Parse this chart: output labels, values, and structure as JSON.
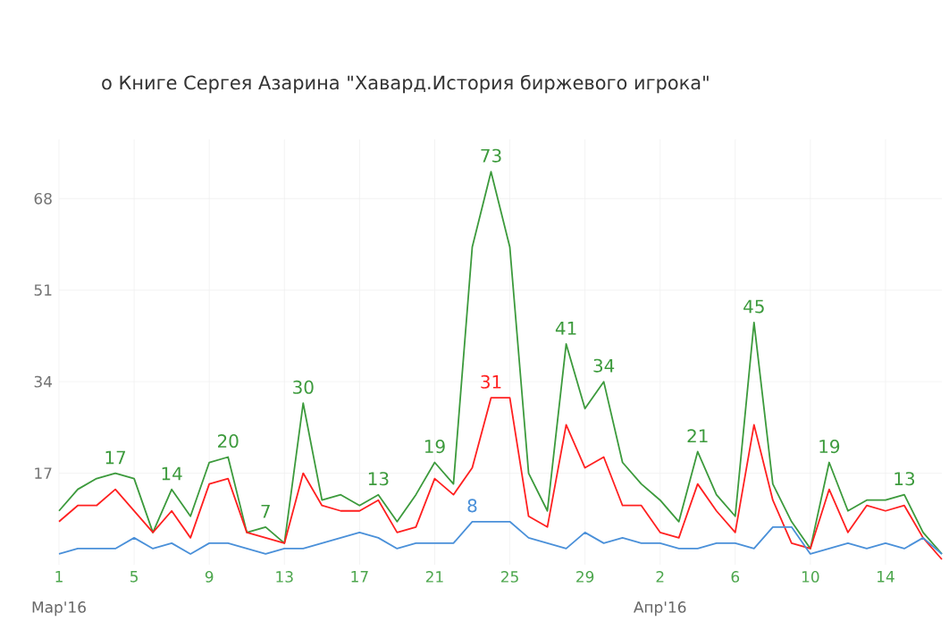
{
  "chart_data": {
    "type": "line",
    "subtitle": "о Книге Сергея Азарина \"Хавард.История биржевого игрока\"",
    "x": [
      "2016-03-01",
      "2016-03-02",
      "2016-03-03",
      "2016-03-04",
      "2016-03-05",
      "2016-03-06",
      "2016-03-07",
      "2016-03-08",
      "2016-03-09",
      "2016-03-10",
      "2016-03-11",
      "2016-03-12",
      "2016-03-13",
      "2016-03-14",
      "2016-03-15",
      "2016-03-16",
      "2016-03-17",
      "2016-03-18",
      "2016-03-19",
      "2016-03-20",
      "2016-03-21",
      "2016-03-22",
      "2016-03-23",
      "2016-03-24",
      "2016-03-25",
      "2016-03-26",
      "2016-03-27",
      "2016-03-28",
      "2016-03-29",
      "2016-03-30",
      "2016-03-31",
      "2016-04-01",
      "2016-04-02",
      "2016-04-03",
      "2016-04-04",
      "2016-04-05",
      "2016-04-06",
      "2016-04-07",
      "2016-04-08",
      "2016-04-09",
      "2016-04-10",
      "2016-04-11",
      "2016-04-12",
      "2016-04-13",
      "2016-04-14",
      "2016-04-15",
      "2016-04-16",
      "2016-04-17"
    ],
    "series": [
      {
        "color": "#3c9a3c",
        "values": [
          10,
          14,
          16,
          17,
          16,
          6,
          14,
          9,
          19,
          20,
          6,
          7,
          4,
          30,
          12,
          13,
          11,
          13,
          8,
          13,
          19,
          15,
          59,
          73,
          59,
          17,
          10,
          41,
          29,
          34,
          19,
          15,
          12,
          8,
          21,
          13,
          9,
          45,
          15,
          8,
          3,
          19,
          10,
          12,
          12,
          13,
          6,
          2
        ],
        "value_labels": [
          null,
          null,
          null,
          "17",
          null,
          null,
          "14",
          null,
          null,
          "20",
          null,
          "7",
          null,
          "30",
          null,
          null,
          null,
          "13",
          null,
          null,
          "19",
          null,
          null,
          "73",
          null,
          null,
          null,
          "41",
          null,
          "34",
          null,
          null,
          null,
          null,
          "21",
          null,
          null,
          "45",
          null,
          null,
          null,
          "19",
          null,
          null,
          null,
          "13",
          null,
          null
        ]
      },
      {
        "color": "#ff2020",
        "values": [
          8,
          11,
          11,
          14,
          10,
          6,
          10,
          5,
          15,
          16,
          6,
          5,
          4,
          17,
          11,
          10,
          10,
          12,
          6,
          7,
          16,
          13,
          18,
          31,
          31,
          9,
          7,
          26,
          18,
          20,
          11,
          11,
          6,
          5,
          15,
          10,
          6,
          26,
          12,
          4,
          3,
          14,
          6,
          11,
          10,
          11,
          5,
          1
        ],
        "value_labels": [
          null,
          null,
          null,
          null,
          null,
          null,
          null,
          null,
          null,
          null,
          null,
          null,
          null,
          null,
          null,
          null,
          null,
          null,
          null,
          null,
          null,
          null,
          null,
          "31",
          null,
          null,
          null,
          null,
          null,
          null,
          null,
          null,
          null,
          null,
          null,
          null,
          null,
          null,
          null,
          null,
          null,
          null,
          null,
          null,
          null,
          null,
          null,
          null
        ]
      },
      {
        "color": "#4a90d9",
        "values": [
          2,
          3,
          3,
          3,
          5,
          3,
          4,
          2,
          4,
          4,
          3,
          2,
          3,
          3,
          4,
          5,
          6,
          5,
          3,
          4,
          4,
          4,
          8,
          8,
          8,
          5,
          4,
          3,
          6,
          4,
          5,
          4,
          4,
          3,
          3,
          4,
          4,
          3,
          7,
          7,
          2,
          3,
          4,
          3,
          4,
          3,
          5,
          2
        ],
        "value_labels": [
          null,
          null,
          null,
          null,
          null,
          null,
          null,
          null,
          null,
          null,
          null,
          null,
          null,
          null,
          null,
          null,
          null,
          null,
          null,
          null,
          null,
          null,
          "8",
          null,
          null,
          null,
          null,
          null,
          null,
          null,
          null,
          null,
          null,
          null,
          null,
          null,
          null,
          null,
          null,
          null,
          null,
          null,
          null,
          null,
          null,
          null,
          null,
          null
        ]
      }
    ],
    "xlim": [
      "2016-03-01",
      "2016-04-17"
    ],
    "xticks": [
      {
        "value": "2016-03-01",
        "label": "1"
      },
      {
        "value": "2016-03-05",
        "label": "5"
      },
      {
        "value": "2016-03-09",
        "label": "9"
      },
      {
        "value": "2016-03-13",
        "label": "13"
      },
      {
        "value": "2016-03-17",
        "label": "17"
      },
      {
        "value": "2016-03-21",
        "label": "21"
      },
      {
        "value": "2016-03-25",
        "label": "25"
      },
      {
        "value": "2016-03-29",
        "label": "29"
      },
      {
        "value": "2016-04-02",
        "label": "2"
      },
      {
        "value": "2016-04-06",
        "label": "6"
      },
      {
        "value": "2016-04-10",
        "label": "10"
      },
      {
        "value": "2016-04-14",
        "label": "14"
      }
    ],
    "ylim": [
      0,
      79
    ],
    "yticks": [
      17,
      34,
      51,
      68
    ],
    "grid": true,
    "annotations": [
      "Мар'16",
      "Апр'16"
    ]
  }
}
